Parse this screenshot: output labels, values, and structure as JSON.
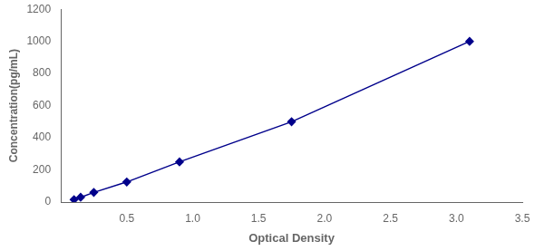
{
  "chart_data": {
    "type": "line",
    "xlabel": "Optical Density",
    "ylabel": "Concentration(pg/mL)",
    "x": [
      0.1,
      0.15,
      0.25,
      0.5,
      0.9,
      1.75,
      3.1
    ],
    "values": [
      15,
      30,
      60,
      125,
      250,
      500,
      1000
    ],
    "color": "#00008B",
    "marker": "diamond",
    "xlim": [
      0,
      3.5
    ],
    "ylim": [
      0,
      1200
    ],
    "xticks": [
      0.5,
      {
        "value": 1,
        "label": "1.0"
      },
      1.5,
      {
        "value": 2,
        "label": "2.0"
      },
      2.5,
      {
        "value": 3,
        "label": "3.0"
      },
      3.5
    ],
    "yticks": [
      0,
      200,
      400,
      600,
      800,
      1000,
      1200
    ],
    "grid": false
  }
}
